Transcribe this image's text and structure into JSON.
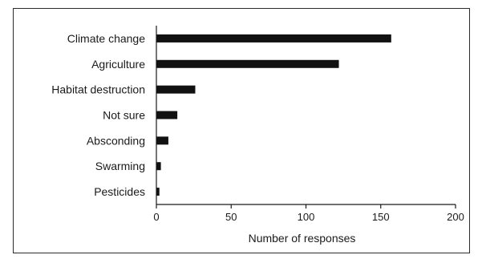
{
  "chart_data": {
    "type": "bar",
    "orientation": "horizontal",
    "categories": [
      "Climate change",
      "Agriculture",
      "Habitat destruction",
      "Not sure",
      "Absconding",
      "Swarming",
      "Pesticides"
    ],
    "values": [
      157,
      122,
      26,
      14,
      8,
      3,
      2
    ],
    "xlabel": "Number of responses",
    "ylabel": "",
    "xlim": [
      0,
      200
    ],
    "xticks": [
      0,
      50,
      100,
      150,
      200
    ],
    "grid": false,
    "bar_color": "#111111"
  }
}
